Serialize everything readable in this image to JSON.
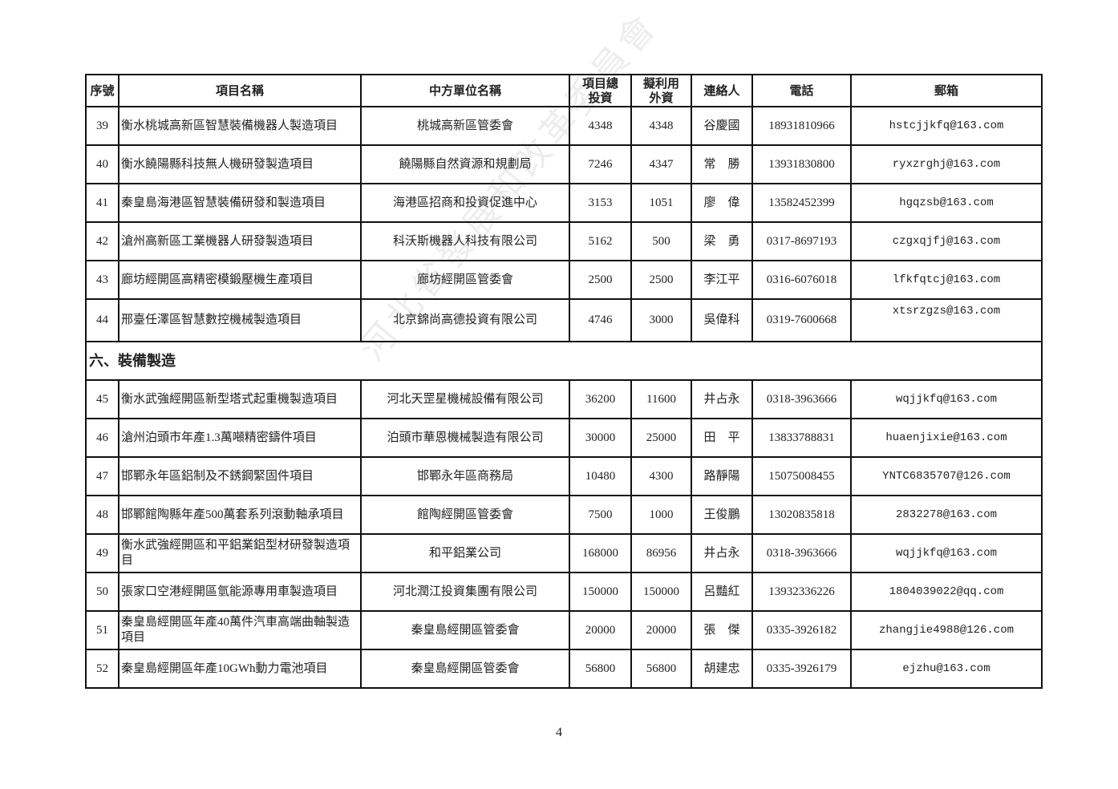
{
  "table": {
    "headers": [
      "序號",
      "項目名稱",
      "中方單位名稱",
      "項目總\n投資",
      "擬利用\n外資",
      "連絡人",
      "電話",
      "郵箱"
    ],
    "rows_a": [
      {
        "no": "39",
        "name": "衡水桃城高新區智慧裝備機器人製造項目",
        "unit": "桃城高新區管委會",
        "total": "4348",
        "foreign": "4348",
        "contact": "谷慶國",
        "phone": "18931810966",
        "email": "hstcjjkfq@163.com"
      },
      {
        "no": "40",
        "name": "衡水饒陽縣科技無人機研發製造項目",
        "unit": "饒陽縣自然資源和規劃局",
        "total": "7246",
        "foreign": "4347",
        "contact": "常　勝",
        "phone": "13931830800",
        "email": "ryxzrghj@163.com"
      },
      {
        "no": "41",
        "name": "秦皇島海港區智慧裝備研發和製造項目",
        "unit": "海港區招商和投資促進中心",
        "total": "3153",
        "foreign": "1051",
        "contact": "廖　偉",
        "phone": "13582452399",
        "email": "hgqzsb@163.com"
      },
      {
        "no": "42",
        "name": "滄州高新區工業機器人研發製造項目",
        "unit": "科沃斯機器人科技有限公司",
        "total": "5162",
        "foreign": "500",
        "contact": "梁　勇",
        "phone": "0317-8697193",
        "email": "czgxqjfj@163.com"
      },
      {
        "no": "43",
        "name": "廊坊經開區高精密模鍛壓機生產項目",
        "unit": "廊坊經開區管委會",
        "total": "2500",
        "foreign": "2500",
        "contact": "李江平",
        "phone": "0316-6076018",
        "email": "lfkfqtcj@163.com"
      },
      {
        "no": "44",
        "name": "邢臺任澤區智慧數控機械製造項目",
        "unit": "北京錦尚高德投資有限公司",
        "total": "4746",
        "foreign": "3000",
        "contact": "吳偉科",
        "phone": "0319-7600668",
        "email": "xtsrzgzs@163.com",
        "email_top": true
      }
    ],
    "section_title": "六、裝備製造",
    "rows_b": [
      {
        "no": "45",
        "name": "衡水武強經開區新型塔式起重機製造項目",
        "unit": "河北天罡星機械設備有限公司",
        "total": "36200",
        "foreign": "11600",
        "contact": "井占永",
        "phone": "0318-3963666",
        "email": "wqjjkfq@163.com"
      },
      {
        "no": "46",
        "name": "滄州泊頭市年產1.3萬噸精密鑄件項目",
        "unit": "泊頭市華恩機械製造有限公司",
        "total": "30000",
        "foreign": "25000",
        "contact": "田　平",
        "phone": "13833788831",
        "email": "huaenjixie@163.com"
      },
      {
        "no": "47",
        "name": "邯鄲永年區鋁制及不銹鋼緊固件項目",
        "unit": "邯鄲永年區商務局",
        "total": "10480",
        "foreign": "4300",
        "contact": "路靜陽",
        "phone": "15075008455",
        "email": "YNTC6835707@126.com"
      },
      {
        "no": "48",
        "name": "邯鄲館陶縣年產500萬套系列滾動軸承項目",
        "unit": "館陶經開區管委會",
        "total": "7500",
        "foreign": "1000",
        "contact": "王俊鵬",
        "phone": "13020835818",
        "email": "2832278@163.com"
      },
      {
        "no": "49",
        "name": "衡水武強經開區和平鋁業鋁型材研發製造項目",
        "unit": "和平鋁業公司",
        "total": "168000",
        "foreign": "86956",
        "contact": "井占永",
        "phone": "0318-3963666",
        "email": "wqjjkfq@163.com"
      },
      {
        "no": "50",
        "name": "張家口空港經開區氫能源專用車製造項目",
        "unit": "河北潤江投資集團有限公司",
        "total": "150000",
        "foreign": "150000",
        "contact": "呂豔紅",
        "phone": "13932336226",
        "email": "1804039022@qq.com"
      },
      {
        "no": "51",
        "name": "秦皇島經開區年產40萬件汽車高端曲軸製造項目",
        "unit": "秦皇島經開區管委會",
        "total": "20000",
        "foreign": "20000",
        "contact": "張　傑",
        "phone": "0335-3926182",
        "email": "zhangjie4988@126.com"
      },
      {
        "no": "52",
        "name": "秦皇島經開區年產10GWh動力電池項目",
        "unit": "秦皇島經開區管委會",
        "total": "56800",
        "foreign": "56800",
        "contact": "胡建忠",
        "phone": "0335-3926179",
        "email": "ejzhu@163.com"
      }
    ]
  },
  "page_number": "4",
  "watermark": "河北省發展和改革委員會"
}
